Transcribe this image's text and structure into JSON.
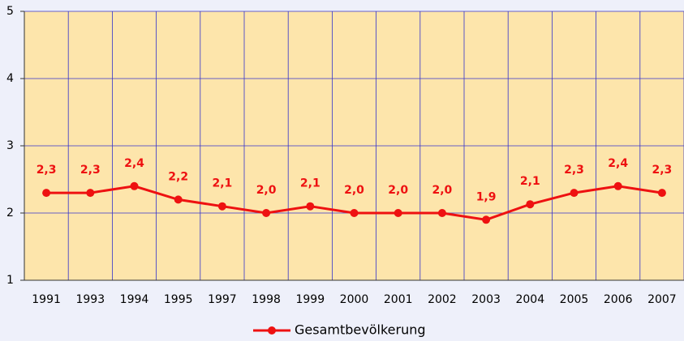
{
  "chart_data": {
    "type": "line",
    "categories": [
      "1991",
      "1993",
      "1994",
      "1995",
      "1997",
      "1998",
      "1999",
      "2000",
      "2001",
      "2002",
      "2003",
      "2004",
      "2005",
      "2006",
      "2007"
    ],
    "series": [
      {
        "name": "Gesamtbevölkerung",
        "color": "#ee1111",
        "values": [
          2.3,
          2.3,
          2.4,
          2.2,
          2.1,
          2.0,
          2.1,
          2.0,
          2.0,
          2.0,
          1.9,
          2.13,
          2.3,
          2.4,
          2.3
        ],
        "value_labels": [
          "2,3",
          "2,3",
          "2,4",
          "2,2",
          "2,1",
          "2,0",
          "2,1",
          "2,0",
          "2,0",
          "2,0",
          "1,9",
          "2,1",
          "2,3",
          "2,4",
          "2,3"
        ]
      }
    ],
    "ylim": [
      1,
      5
    ],
    "yticks": [
      1,
      2,
      3,
      4,
      5
    ],
    "grid": true,
    "legend": "bottom"
  }
}
